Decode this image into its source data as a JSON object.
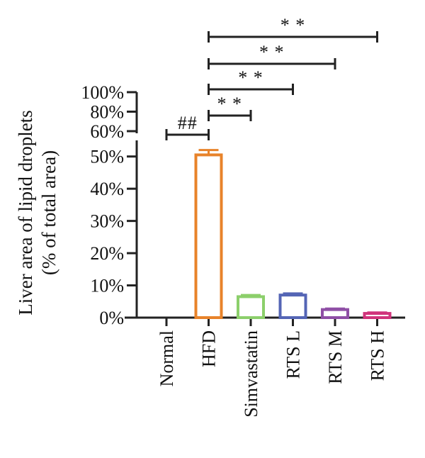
{
  "chart_data": {
    "type": "bar",
    "ylabel_line1": "Liver area of lipid droplets",
    "ylabel_line2": "(% of total area)",
    "categories": [
      "Normal",
      "HFD",
      "Simvastatin",
      "RTS L",
      "RTS M",
      "RTS H"
    ],
    "values": [
      0,
      50.5,
      6.5,
      7.0,
      2.5,
      1.3
    ],
    "errors": [
      0,
      1.5,
      0.5,
      0.5,
      0.3,
      0.3
    ],
    "colors": [
      "#999999",
      "#e8832a",
      "#8ccf6b",
      "#5465b5",
      "#8f4fa6",
      "#d0337b"
    ],
    "ylim_lower": [
      0,
      55
    ],
    "ylim_upper": [
      60,
      100
    ],
    "lower_ticks": [
      "0%",
      "10%",
      "20%",
      "30%",
      "40%",
      "50%"
    ],
    "upper_ticks": [
      "60%",
      "80%",
      "100%"
    ],
    "significance": [
      {
        "from": "Normal",
        "to": "HFD",
        "label": "##"
      },
      {
        "from": "HFD",
        "to": "Simvastatin",
        "label": "* *"
      },
      {
        "from": "HFD",
        "to": "RTS L",
        "label": "* *"
      },
      {
        "from": "HFD",
        "to": "RTS M",
        "label": "* *"
      },
      {
        "from": "HFD",
        "to": "RTS H",
        "label": "* *"
      }
    ]
  }
}
